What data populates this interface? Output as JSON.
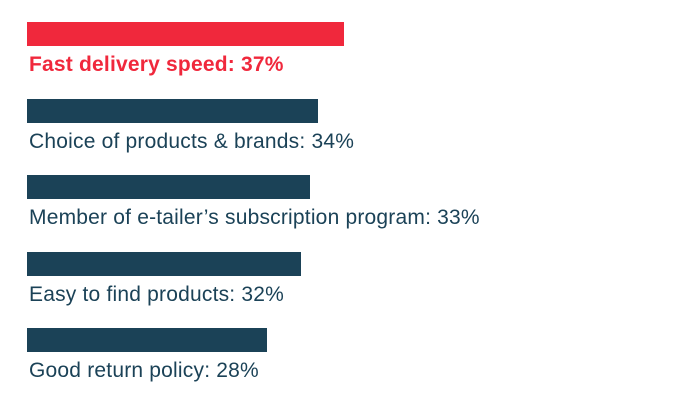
{
  "chart_data": {
    "type": "bar",
    "orientation": "horizontal",
    "title": "",
    "xlabel": "",
    "ylabel": "",
    "unit": "%",
    "xlim": [
      0,
      42
    ],
    "grid": false,
    "categories": [
      "Fast delivery speed",
      "Choice of products & brands",
      "Member of e-tailer’s subscription program",
      "Easy to find products",
      "Good return policy"
    ],
    "values": [
      37,
      34,
      33,
      32,
      28
    ],
    "labels": [
      "Fast delivery speed: 37%",
      "Choice of products & brands: 34%",
      "Member of e-tailer’s subscription program: 33%",
      "Easy to find products: 32%",
      "Good return policy: 28%"
    ],
    "highlight_index": 0,
    "colors": {
      "highlight": "#f0283c",
      "bar": "#1b4257",
      "label": "#1b4257",
      "highlight_label": "#f0283c"
    }
  }
}
